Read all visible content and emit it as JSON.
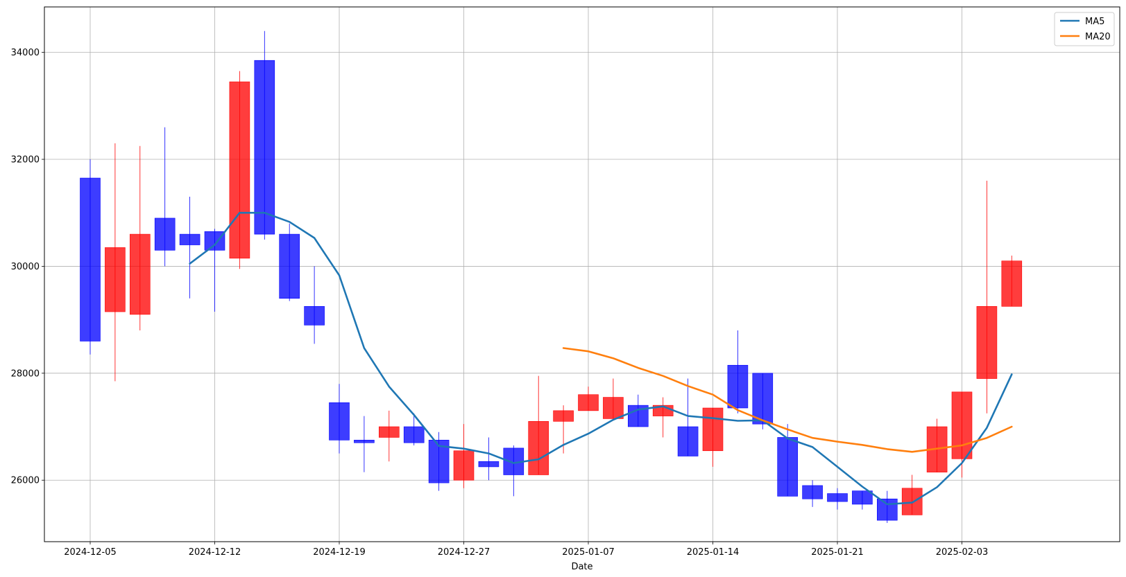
{
  "chart_data": {
    "type": "candlestick",
    "title": "",
    "xlabel": "Date",
    "ylabel": "",
    "ylim": [
      24850,
      34850
    ],
    "grid": true,
    "legend_position": "top-right",
    "colors": {
      "up": "#ff0000",
      "down": "#0000ff",
      "ma5": "#1f77b4",
      "ma20": "#ff7f0e",
      "grid": "#b0b0b0"
    },
    "x_ticks": [
      {
        "index": 0,
        "label": "2024-12-05"
      },
      {
        "index": 5,
        "label": "2024-12-12"
      },
      {
        "index": 10,
        "label": "2024-12-19"
      },
      {
        "index": 15,
        "label": "2024-12-27"
      },
      {
        "index": 20,
        "label": "2025-01-07"
      },
      {
        "index": 25,
        "label": "2025-01-14"
      },
      {
        "index": 30,
        "label": "2025-01-21"
      },
      {
        "index": 35,
        "label": "2025-02-03"
      }
    ],
    "y_ticks": [
      26000,
      28000,
      30000,
      32000,
      34000
    ],
    "candles": [
      {
        "open": 31650,
        "close": 28600,
        "high": 32000,
        "low": 28350
      },
      {
        "open": 29150,
        "close": 30350,
        "high": 32300,
        "low": 27850
      },
      {
        "open": 29100,
        "close": 30600,
        "high": 32250,
        "low": 28800
      },
      {
        "open": 30900,
        "close": 30300,
        "high": 32600,
        "low": 30000
      },
      {
        "open": 30600,
        "close": 30400,
        "high": 31300,
        "low": 29400
      },
      {
        "open": 30650,
        "close": 30300,
        "high": 30700,
        "low": 29150
      },
      {
        "open": 30150,
        "close": 33450,
        "high": 33650,
        "low": 29950
      },
      {
        "open": 33850,
        "close": 30600,
        "high": 34400,
        "low": 30500
      },
      {
        "open": 30600,
        "close": 29400,
        "high": 30800,
        "low": 29350
      },
      {
        "open": 29250,
        "close": 28900,
        "high": 30000,
        "low": 28550
      },
      {
        "open": 27450,
        "close": 26750,
        "high": 27800,
        "low": 26500
      },
      {
        "open": 26750,
        "close": 26700,
        "high": 27200,
        "low": 26150
      },
      {
        "open": 26800,
        "close": 27000,
        "high": 27300,
        "low": 26350
      },
      {
        "open": 27000,
        "close": 26700,
        "high": 27250,
        "low": 26650
      },
      {
        "open": 26750,
        "close": 25950,
        "high": 26900,
        "low": 25800
      },
      {
        "open": 26000,
        "close": 26550,
        "high": 27050,
        "low": 25850
      },
      {
        "open": 26350,
        "close": 26250,
        "high": 26800,
        "low": 26000
      },
      {
        "open": 26600,
        "close": 26100,
        "high": 26650,
        "low": 25700
      },
      {
        "open": 26100,
        "close": 27100,
        "high": 27950,
        "low": 26100
      },
      {
        "open": 27100,
        "close": 27300,
        "high": 27400,
        "low": 26500
      },
      {
        "open": 27300,
        "close": 27600,
        "high": 27750,
        "low": 27300
      },
      {
        "open": 27150,
        "close": 27550,
        "high": 27900,
        "low": 27150
      },
      {
        "open": 27400,
        "close": 27000,
        "high": 27600,
        "low": 27000
      },
      {
        "open": 27200,
        "close": 27400,
        "high": 27550,
        "low": 26800
      },
      {
        "open": 27000,
        "close": 26450,
        "high": 27900,
        "low": 26450
      },
      {
        "open": 26550,
        "close": 27350,
        "high": 27350,
        "low": 26250
      },
      {
        "open": 28150,
        "close": 27350,
        "high": 28800,
        "low": 27250
      },
      {
        "open": 28000,
        "close": 27050,
        "high": 28000,
        "low": 26950
      },
      {
        "open": 26800,
        "close": 25700,
        "high": 27050,
        "low": 25700
      },
      {
        "open": 25900,
        "close": 25650,
        "high": 26000,
        "low": 25500
      },
      {
        "open": 25750,
        "close": 25600,
        "high": 25850,
        "low": 25450
      },
      {
        "open": 25800,
        "close": 25550,
        "high": 25800,
        "low": 25450
      },
      {
        "open": 25650,
        "close": 25250,
        "high": 25800,
        "low": 25200
      },
      {
        "open": 25350,
        "close": 25850,
        "high": 26100,
        "low": 25350
      },
      {
        "open": 26150,
        "close": 27000,
        "high": 27150,
        "low": 26150
      },
      {
        "open": 26400,
        "close": 27650,
        "high": 27650,
        "low": 26050
      },
      {
        "open": 27900,
        "close": 29250,
        "high": 31600,
        "low": 27250
      },
      {
        "open": 29250,
        "close": 30100,
        "high": 30200,
        "low": 29250
      }
    ],
    "series": [
      {
        "name": "MA5",
        "start_index": 4,
        "values": [
          30050,
          30400,
          31000,
          31000,
          30830,
          30530,
          29830,
          28470,
          27750,
          27220,
          26640,
          26590,
          26500,
          26320,
          26390,
          26660,
          26870,
          27130,
          27320,
          27380,
          27200,
          27160,
          27110,
          27120,
          26780,
          26620,
          26250,
          25880,
          25550,
          25580,
          25870,
          26320,
          26980,
          27980
        ]
      },
      {
        "name": "MA20",
        "start_index": 19,
        "values": [
          28470,
          28410,
          28280,
          28100,
          27950,
          27760,
          27600,
          27310,
          27120,
          26950,
          26790,
          26720,
          26660,
          26580,
          26530,
          26590,
          26650,
          26790,
          27000
        ]
      }
    ]
  }
}
